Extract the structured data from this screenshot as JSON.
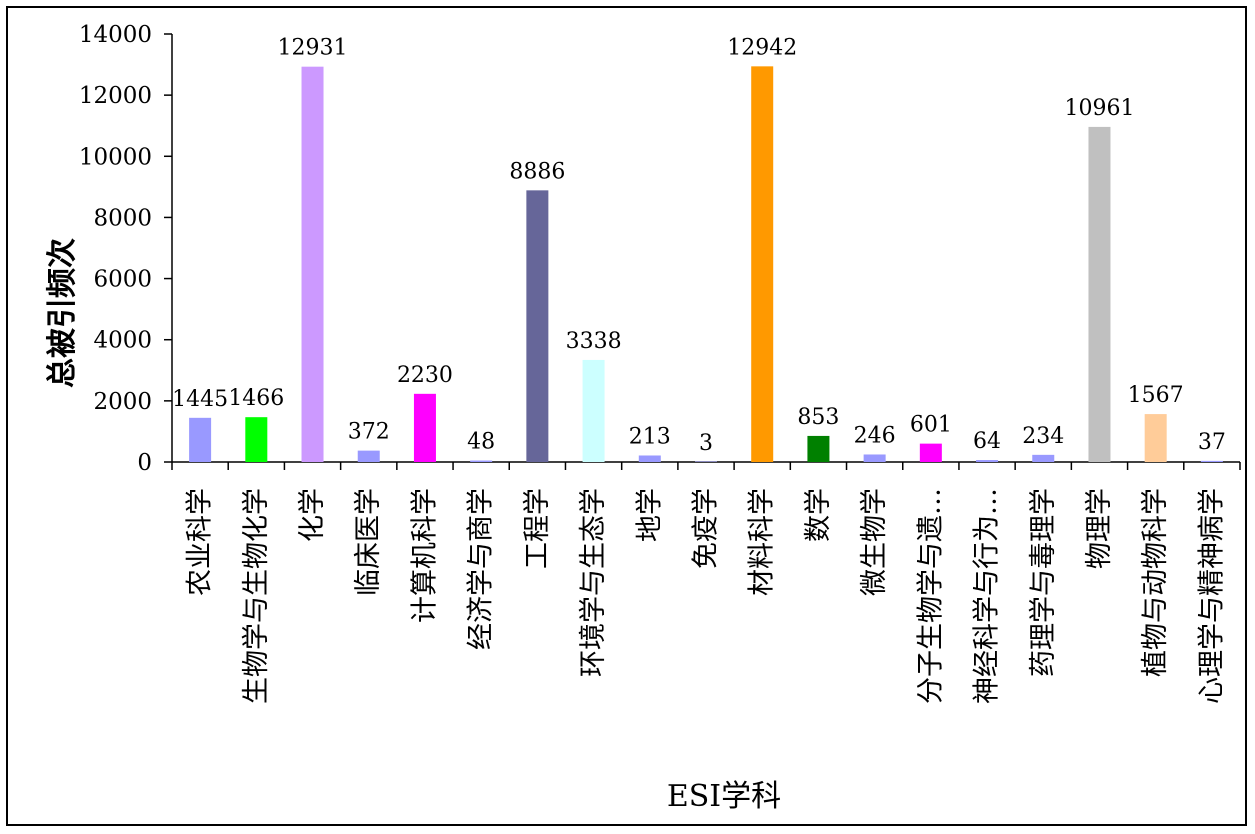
{
  "chart_data": {
    "type": "bar",
    "xlabel": "ESI学科",
    "ylabel": "总被引频次",
    "ylim": [
      0,
      14000
    ],
    "yticks": [
      "0",
      "2000",
      "4000",
      "6000",
      "8000",
      "10000",
      "12000",
      "14000"
    ],
    "grid": false,
    "legend": "none",
    "categories": [
      "农业科学",
      "生物学与生物化学",
      "化学",
      "临床医学",
      "计算机科学",
      "经济学与商学",
      "工程学",
      "环境学与生态学",
      "地学",
      "免疫学",
      "材料科学",
      "数学",
      "微生物学",
      "分子生物学与遗…",
      "神经科学与行为…",
      "药理学与毒理学",
      "物理学",
      "植物与动物科学",
      "心理学与精神病学"
    ],
    "values": [
      1445,
      1466,
      12931,
      372,
      2230,
      48,
      8886,
      3338,
      213,
      3,
      12942,
      853,
      246,
      601,
      64,
      234,
      10961,
      1567,
      37
    ],
    "labels": [
      "1445",
      "1466",
      "12931",
      "372",
      "2230",
      "48",
      "8886",
      "3338",
      "213",
      "3",
      "12942",
      "853",
      "246",
      "601",
      "64",
      "234",
      "10961",
      "1567",
      "37"
    ],
    "colors": [
      "#9999ff",
      "#00ff00",
      "#cc99ff",
      "#9999ff",
      "#ff00ff",
      "#9999ff",
      "#666699",
      "#ccffff",
      "#9999ff",
      "#9999ff",
      "#ff9900",
      "#008000",
      "#9999ff",
      "#ff00ff",
      "#9999ff",
      "#9999ff",
      "#c0c0c0",
      "#ffcc99",
      "#9999ff"
    ]
  }
}
